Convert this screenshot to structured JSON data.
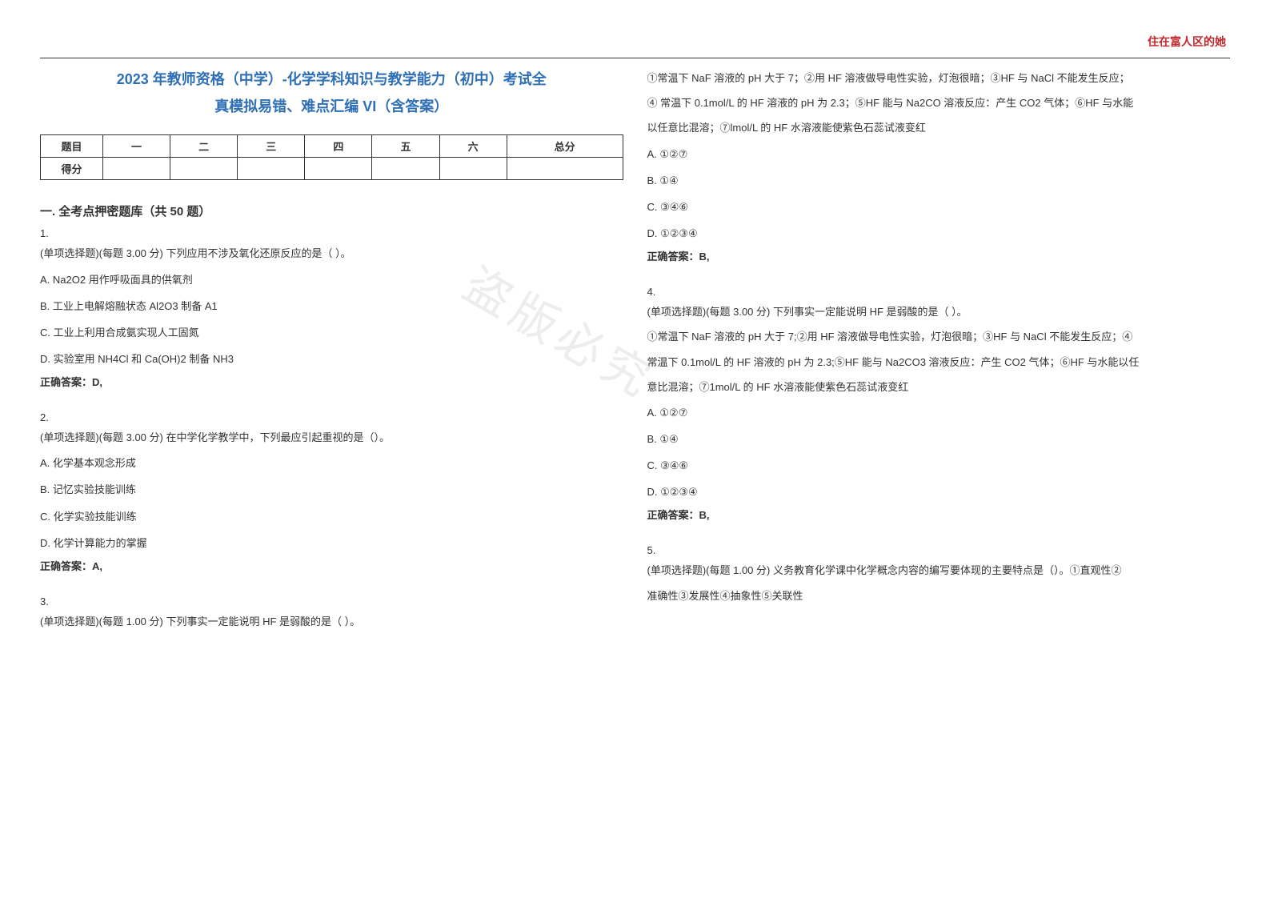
{
  "header": {
    "right_text": "住在富人区的她",
    "title_line1": "2023 年教师资格（中学）-化学学科知识与教学能力（初中）考试全",
    "title_line2": "真模拟易错、难点汇编 VI（含答案）"
  },
  "watermark": "盗版必究",
  "colors": {
    "header_red": "#c1272d",
    "title_blue": "#2e6fb5",
    "text": "#333333",
    "border": "#333333",
    "watermark": "#e6e6e6",
    "background": "#ffffff"
  },
  "score_table": {
    "row1": [
      "题目",
      "一",
      "二",
      "三",
      "四",
      "五",
      "六",
      "总分"
    ],
    "row2_label": "得分"
  },
  "section": {
    "heading": "一. 全考点押密题库（共 50 题）"
  },
  "questions": {
    "q1": {
      "num": "1.",
      "stem": "(单项选择题)(每题  3.00 分)  下列应用不涉及氧化还原反应的是（ ）。",
      "A": "A. Na2O2 用作呼吸面具的供氧剂",
      "B": "B.  工业上电解熔融状态 Al2O3 制备 A1",
      "C": "C. 工业上利用合成氨实现人工固氮",
      "D": "D.  实验室用 NH4Cl 和 Ca(OH)2 制备 NH3",
      "answer": "正确答案：D,"
    },
    "q2": {
      "num": "2.",
      "stem": "(单项选择题)(每题  3.00 分)  在中学化学教学中，下列最应引起重视的是（）。",
      "A": "A.  化学基本观念形成",
      "B": "B.  记忆实验技能训练",
      "C": "C. 化学实验技能训练",
      "D": "D.  化学计算能力的掌握",
      "answer": "正确答案：A,"
    },
    "q3": {
      "num": "3.",
      "stem": "(单项选择题)(每题  1.00 分)  下列事实一定能说明 HF 是弱酸的是（  ）。",
      "body1": "①常温下 NaF 溶液的 pH 大于 7；②用 HF 溶液做导电性实验，灯泡很暗；③HF 与 NaCl 不能发生反应；",
      "body2": "④  常温下 0.1mol/L 的 HF 溶液的 pH 为 2.3；⑤HF 能与 Na2CO 溶液反应：产生 CO2 气体；⑥HF 与水能",
      "body3": "以任意比混溶；⑦lmol/L 的 HF 水溶液能使紫色石蕊试液变红",
      "A": "A. ①②⑦",
      "B": "B. ①④",
      "C": "C. ③④⑥",
      "D": "D. ①②③④",
      "answer": "正确答案：B,"
    },
    "q4": {
      "num": "4.",
      "stem": "(单项选择题)(每题  3.00 分)  下列事实一定能说明 HF 是弱酸的是（  ）。",
      "body1": "①常温下 NaF 溶液的 pH 大于 7;②用 HF 溶液做导电性实验，灯泡很暗；③HF 与 NaCl 不能发生反应；④",
      "body2": "常温下 0.1mol/L 的 HF 溶液的 pH 为 2.3;⑤HF 能与 Na2CO3 溶液反应：产生 CO2 气体；⑥HF 与水能以任",
      "body3": "意比混溶；⑦1mol/L 的 HF 水溶液能使紫色石蕊试液变红",
      "A": "A. ①②⑦",
      "B": "B. ①④",
      "C": "C. ③④⑥",
      "D": "D. ①②③④",
      "answer": "正确答案：B,"
    },
    "q5": {
      "num": "5.",
      "stem": "(单项选择题)(每题  1.00 分)  义务教育化学课中化学概念内容的编写要体现的主要特点是（）。①直观性②",
      "body1": "准确性③发展性④抽象性⑤关联性"
    }
  }
}
